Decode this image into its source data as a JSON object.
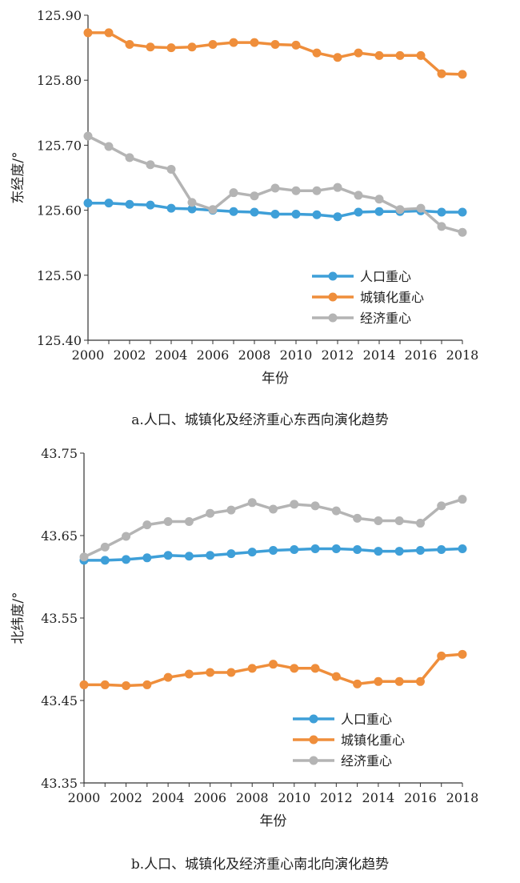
{
  "chart_data": [
    {
      "type": "line",
      "caption": "a.人口、城镇化及经济重心东西向演化趋势",
      "xlabel": "年份",
      "ylabel": "东经度/°",
      "ylim": [
        125.4,
        125.9
      ],
      "yticks": [
        "125.40",
        "125.50",
        "125.60",
        "125.70",
        "125.80",
        "125.90"
      ],
      "xticks": [
        "2000",
        "2002",
        "2004",
        "2006",
        "2008",
        "2010",
        "2012",
        "2014",
        "2016",
        "2018"
      ],
      "x": [
        2000,
        2001,
        2002,
        2003,
        2004,
        2005,
        2006,
        2007,
        2008,
        2009,
        2010,
        2011,
        2012,
        2013,
        2014,
        2015,
        2016,
        2017,
        2018
      ],
      "legend_position": "bottom-right",
      "series": [
        {
          "name": "人口重心",
          "color": "#3e9fd8",
          "values": [
            125.611,
            125.611,
            125.609,
            125.608,
            125.603,
            125.602,
            125.6,
            125.598,
            125.597,
            125.594,
            125.594,
            125.593,
            125.59,
            125.597,
            125.598,
            125.598,
            125.599,
            125.597,
            125.597
          ]
        },
        {
          "name": "城镇化重心",
          "color": "#ef8e3b",
          "values": [
            125.873,
            125.873,
            125.855,
            125.851,
            125.85,
            125.851,
            125.855,
            125.858,
            125.858,
            125.855,
            125.854,
            125.842,
            125.835,
            125.842,
            125.838,
            125.838,
            125.838,
            125.81,
            125.809
          ]
        },
        {
          "name": "经济重心",
          "color": "#b4b4b4",
          "values": [
            125.714,
            125.698,
            125.681,
            125.67,
            125.663,
            125.612,
            125.601,
            125.627,
            125.622,
            125.634,
            125.63,
            125.63,
            125.635,
            125.623,
            125.617,
            125.601,
            125.603,
            125.575,
            125.566
          ]
        }
      ]
    },
    {
      "type": "line",
      "caption": "b.人口、城镇化及经济重心南北向演化趋势",
      "xlabel": "年份",
      "ylabel": "北纬度/°",
      "ylim": [
        43.35,
        43.75
      ],
      "yticks": [
        "43.35",
        "43.45",
        "43.55",
        "43.65",
        "43.75"
      ],
      "xticks": [
        "2000",
        "2002",
        "2004",
        "2006",
        "2008",
        "2010",
        "2012",
        "2014",
        "2016",
        "2018"
      ],
      "x": [
        2000,
        2001,
        2002,
        2003,
        2004,
        2005,
        2006,
        2007,
        2008,
        2009,
        2010,
        2011,
        2012,
        2013,
        2014,
        2015,
        2016,
        2017,
        2018
      ],
      "legend_position": "bottom-right",
      "series": [
        {
          "name": "人口重心",
          "color": "#3e9fd8",
          "values": [
            43.62,
            43.62,
            43.621,
            43.623,
            43.626,
            43.625,
            43.626,
            43.628,
            43.63,
            43.632,
            43.633,
            43.634,
            43.634,
            43.633,
            43.631,
            43.631,
            43.632,
            43.633,
            43.634
          ]
        },
        {
          "name": "城镇化重心",
          "color": "#ef8e3b",
          "values": [
            43.469,
            43.469,
            43.468,
            43.469,
            43.478,
            43.482,
            43.484,
            43.484,
            43.489,
            43.494,
            43.489,
            43.489,
            43.479,
            43.47,
            43.473,
            43.473,
            43.473,
            43.504,
            43.506
          ]
        },
        {
          "name": "经济重心",
          "color": "#b4b4b4",
          "values": [
            43.624,
            43.636,
            43.649,
            43.663,
            43.667,
            43.667,
            43.677,
            43.681,
            43.69,
            43.682,
            43.688,
            43.686,
            43.68,
            43.671,
            43.668,
            43.668,
            43.665,
            43.686,
            43.694
          ]
        }
      ]
    }
  ]
}
